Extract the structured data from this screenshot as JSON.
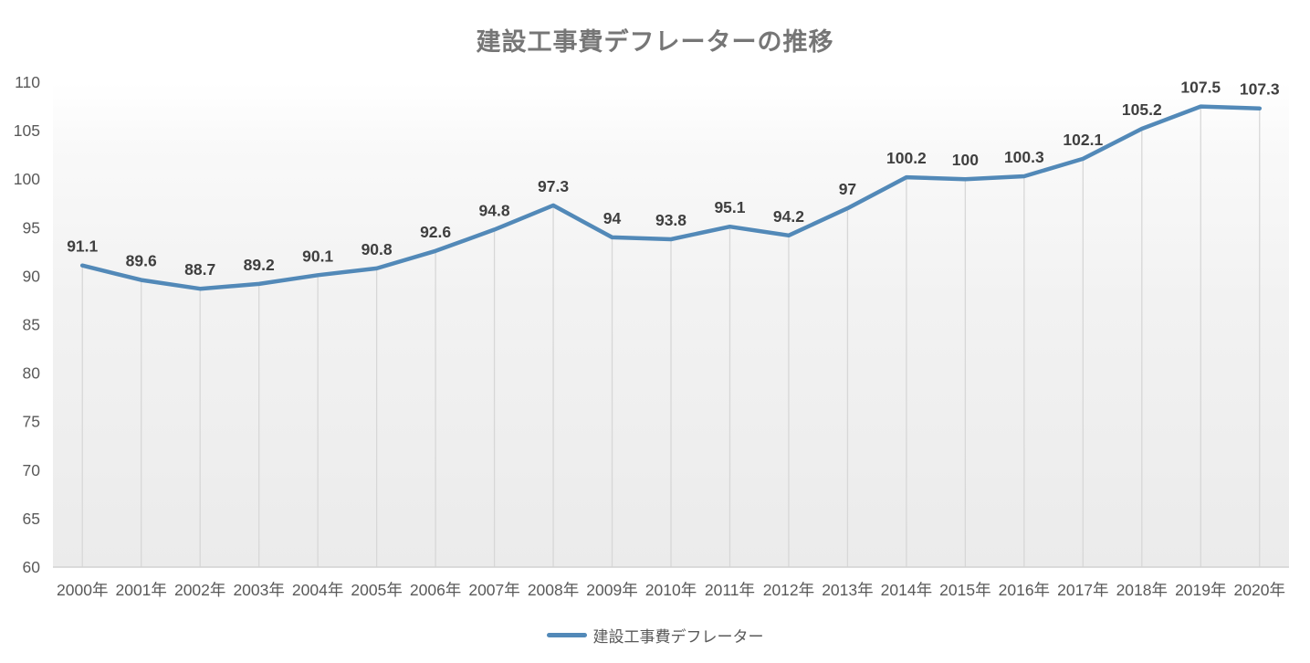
{
  "chart_data": {
    "type": "line",
    "title": "建設工事費デフレーターの推移",
    "categories": [
      "2000年",
      "2001年",
      "2002年",
      "2003年",
      "2004年",
      "2005年",
      "2006年",
      "2007年",
      "2008年",
      "2009年",
      "2010年",
      "2011年",
      "2012年",
      "2013年",
      "2014年",
      "2015年",
      "2016年",
      "2017年",
      "2018年",
      "2019年",
      "2020年"
    ],
    "series": [
      {
        "name": "建設工事費デフレーター",
        "values": [
          91.1,
          89.6,
          88.7,
          89.2,
          90.1,
          90.8,
          92.6,
          94.8,
          97.3,
          94,
          93.8,
          95.1,
          94.2,
          97,
          100.2,
          100,
          100.3,
          102.1,
          105.2,
          107.5,
          107.3
        ],
        "data_labels": [
          "91.1",
          "89.6",
          "88.7",
          "89.2",
          "90.1",
          "90.8",
          "92.6",
          "94.8",
          "97.3",
          "94",
          "93.8",
          "95.1",
          "94.2",
          "97",
          "100.2",
          "100",
          "100.3",
          "102.1",
          "105.2",
          "107.5",
          "107.3"
        ]
      }
    ],
    "xlabel": "",
    "ylabel": "",
    "ylim": [
      60,
      110
    ],
    "ytick_step": 5,
    "yticks": [
      "60",
      "65",
      "70",
      "75",
      "80",
      "85",
      "90",
      "95",
      "100",
      "105",
      "110"
    ],
    "grid": "vertical-droplines-only",
    "legend_position": "bottom-center",
    "colors": {
      "line": "#5289B8",
      "line_highlight": "#7FA8CC",
      "drop_line": "#d7d7d7",
      "axis_line": "#d2d2d2",
      "tick_label": "#595959",
      "data_label": "#3f3f3f",
      "title": "#767676",
      "plot_bg_top": "#ffffff",
      "plot_bg_bottom": "#ebebeb"
    }
  }
}
